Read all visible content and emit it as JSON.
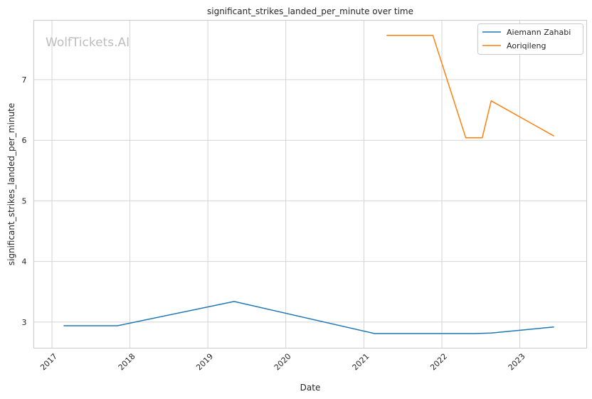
{
  "chart_data": {
    "type": "line",
    "title": "significant_strikes_landed_per_minute over time",
    "xlabel": "Date",
    "ylabel": "significant_strikes_landed_per_minute",
    "watermark": "WolfTickets.AI",
    "grid": true,
    "legend_position": "top-right",
    "xlim": [
      "2016-10-08",
      "2023-11-10"
    ],
    "ylim": [
      2.57,
      7.98
    ],
    "x_ticks": [
      "2017",
      "2018",
      "2019",
      "2020",
      "2021",
      "2022",
      "2023"
    ],
    "y_ticks": [
      "3",
      "4",
      "5",
      "6",
      "7"
    ],
    "series": [
      {
        "name": "Aiemann Zahabi",
        "color": "#1f77b4",
        "points": [
          {
            "x": "2017-02-25",
            "y": 2.94
          },
          {
            "x": "2017-11-04",
            "y": 2.94
          },
          {
            "x": "2019-05-04",
            "y": 3.34
          },
          {
            "x": "2021-02-20",
            "y": 2.81
          },
          {
            "x": "2022-06-04",
            "y": 2.81
          },
          {
            "x": "2022-08-20",
            "y": 2.82
          },
          {
            "x": "2023-06-10",
            "y": 2.92
          }
        ]
      },
      {
        "name": "Aoriqileng",
        "color": "#ff7f0e",
        "points": [
          {
            "x": "2021-04-17",
            "y": 7.73
          },
          {
            "x": "2021-11-20",
            "y": 7.73
          },
          {
            "x": "2022-04-23",
            "y": 6.04
          },
          {
            "x": "2022-07-09",
            "y": 6.04
          },
          {
            "x": "2022-08-20",
            "y": 6.65
          },
          {
            "x": "2023-06-10",
            "y": 6.07
          }
        ]
      }
    ]
  }
}
